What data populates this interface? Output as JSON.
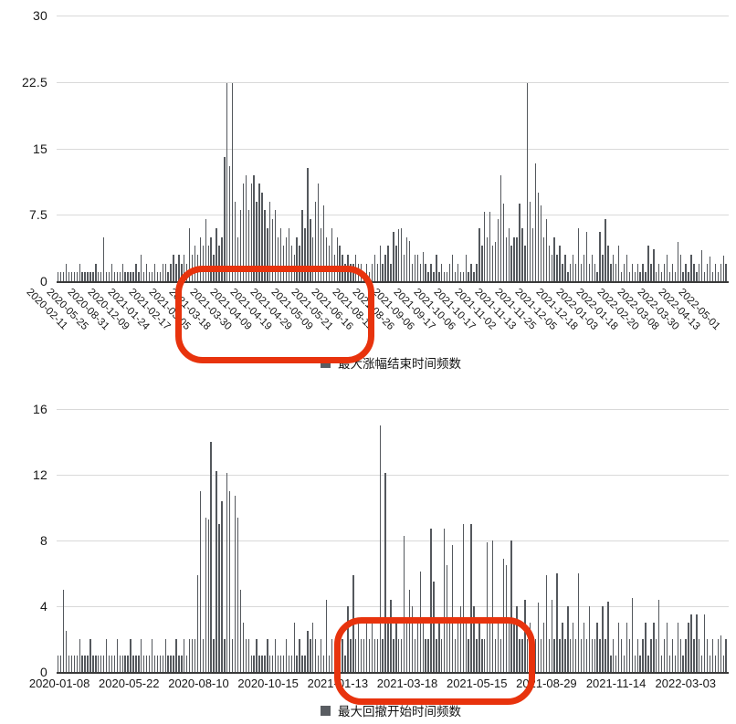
{
  "page": {
    "background": "#ffffff"
  },
  "colors": {
    "bar": "#54585d",
    "gridline": "#d9d9d9",
    "axis_line": "#3a3a3a",
    "tick_label": "#161616",
    "legend_swatch": "#595d62",
    "annotation_red": "#e8330d"
  },
  "chart_data": [
    {
      "type": "bar",
      "legend": "最大涨幅结束时间频数",
      "ylim": [
        0,
        30
      ],
      "yticks": [
        0,
        7.5,
        15,
        22.5,
        30
      ],
      "ytick_labels": [
        "0",
        "7.5",
        "15",
        "22.5",
        "30"
      ],
      "grid": "on",
      "legend_position": "bottom-center",
      "xtick_labels": [
        "2020-02-11",
        "2020-05-25",
        "2020-08-31",
        "2020-12-09",
        "2021-01-24",
        "2021-02-17",
        "2021-03-05",
        "2021-03-18",
        "2021-03-30",
        "2021-04-09",
        "2021-04-19",
        "2021-04-29",
        "2021-05-09",
        "2021-05-21",
        "2021-06-16",
        "2021-08-11",
        "2021-08-26",
        "2021-09-06",
        "2021-09-17",
        "2021-10-06",
        "2021-10-17",
        "2021-11-02",
        "2021-11-13",
        "2021-11-25",
        "2021-12-05",
        "2021-12-18",
        "2022-01-03",
        "2022-01-18",
        "2022-02-20",
        "2022-03-08",
        "2022-03-30",
        "2022-04-13",
        "2022-05-01"
      ],
      "highlight": {
        "shape": "rounded-rect",
        "color": "#e8330d",
        "range_labels": [
          "2021-03-05",
          "2021-06-16"
        ]
      },
      "values": [
        1,
        1,
        1,
        2,
        1,
        1,
        1,
        1,
        2,
        1,
        1,
        1,
        1,
        1,
        2,
        1,
        1,
        5,
        1,
        1,
        2,
        1,
        1,
        1,
        2,
        1,
        1,
        1,
        1,
        2,
        1,
        3,
        1,
        2,
        1,
        1,
        2,
        1,
        1,
        2,
        2,
        1,
        2,
        3,
        2,
        3,
        2,
        3,
        2,
        6,
        3,
        4,
        3,
        5,
        4,
        7,
        4,
        5,
        3,
        6,
        4,
        5,
        14,
        22.4,
        13,
        22.4,
        9,
        5,
        8,
        11,
        12,
        8,
        11,
        12,
        9,
        11,
        10,
        8,
        6,
        9,
        7,
        8,
        5,
        6,
        4,
        5,
        6,
        4,
        3,
        5,
        4,
        8,
        6,
        12.8,
        7,
        5,
        9,
        11,
        6,
        8.6,
        5,
        4,
        6,
        3,
        5,
        4,
        3,
        2,
        3,
        2,
        2,
        3,
        2,
        2,
        1,
        2,
        1,
        2,
        3,
        2,
        4,
        2,
        3,
        4,
        2,
        5.6,
        4,
        5.9,
        6,
        3,
        5,
        4.5,
        2,
        3,
        3,
        2,
        3.3,
        2,
        1,
        2,
        1,
        3,
        1,
        2,
        1,
        1,
        2,
        3,
        1,
        2,
        1,
        1,
        3,
        1,
        2,
        1,
        2,
        6,
        4,
        7.8,
        5,
        7.8,
        4,
        4.4,
        7,
        12,
        8.8,
        5,
        6,
        4,
        5,
        5,
        8.8,
        6,
        4,
        22.4,
        9,
        6,
        13.3,
        10,
        8.6,
        5,
        7,
        4,
        3,
        5,
        3,
        4,
        2,
        3,
        1,
        2,
        3,
        2,
        6,
        2,
        3,
        5.6,
        2,
        3,
        2,
        1,
        5.6,
        3,
        7,
        4,
        2,
        3,
        2,
        4,
        1,
        2,
        3,
        1,
        2,
        1,
        2,
        1,
        2,
        1,
        4,
        2,
        3.6,
        1,
        2,
        1,
        2,
        3,
        1,
        2,
        1,
        4.4,
        3,
        1,
        2,
        1,
        3,
        2,
        1,
        2,
        3.5,
        1,
        2,
        2.8,
        1,
        2,
        1,
        2,
        2.9,
        2
      ]
    },
    {
      "type": "bar",
      "legend": "最大回撤开始时间频数",
      "ylim": [
        0,
        16
      ],
      "yticks": [
        0,
        4,
        8,
        12,
        16
      ],
      "ytick_labels": [
        "0",
        "4",
        "8",
        "12",
        "16"
      ],
      "grid": "on",
      "legend_position": "bottom-center",
      "xtick_labels": [
        "2020-01-08",
        "2020-05-22",
        "2020-08-10",
        "2020-10-15",
        "2021-01-13",
        "2021-03-18",
        "2021-05-15",
        "2021-08-29",
        "2021-11-14",
        "2022-03-03"
      ],
      "highlight": {
        "shape": "rounded-rect",
        "color": "#e8330d",
        "range_labels": [
          "2021-01-13",
          "2021-05-15"
        ]
      },
      "values": [
        1,
        1,
        5,
        2.5,
        1,
        1,
        1,
        1,
        2,
        1,
        1,
        1,
        2,
        1,
        1,
        1,
        1,
        1,
        2,
        1,
        1,
        1,
        2,
        1,
        1,
        1,
        1,
        2,
        1,
        1,
        1,
        2,
        1,
        1,
        1,
        2,
        1,
        1,
        1,
        1,
        2,
        1,
        1,
        1,
        2,
        1,
        1,
        2,
        1,
        2,
        2,
        2,
        5.9,
        11,
        2,
        9.4,
        9.3,
        14,
        2,
        12.2,
        9,
        10.4,
        2,
        12.1,
        11,
        2,
        10.7,
        9.4,
        5,
        3,
        2,
        2,
        1,
        1,
        2,
        1,
        1,
        1,
        2,
        1,
        1,
        2,
        1,
        1,
        1,
        2,
        1,
        1,
        3,
        1,
        2,
        1,
        1,
        2.5,
        2,
        3,
        2,
        1,
        2,
        1,
        4.4,
        1,
        2,
        1,
        2,
        1,
        2,
        1,
        4,
        2,
        5.9,
        2,
        3,
        2,
        2,
        3,
        2,
        3,
        2,
        2,
        15,
        2,
        12.1,
        3,
        4.4,
        2,
        3,
        2,
        2,
        8.3,
        3,
        5,
        4,
        2,
        3,
        6.1,
        3,
        2,
        2,
        8.7,
        5.5,
        2,
        3,
        2,
        8.7,
        6.5,
        3,
        7.7,
        2,
        3,
        4,
        9,
        3,
        2,
        9,
        4,
        2,
        3,
        2,
        2,
        7.9,
        3,
        8,
        2,
        3,
        2,
        6.9,
        6.5,
        3,
        8,
        3,
        4,
        2,
        2,
        4.4,
        2,
        3,
        2,
        2,
        4.2,
        2,
        3,
        5.9,
        2,
        4.4,
        2,
        6,
        2,
        3,
        2,
        4,
        2,
        3,
        2,
        6,
        2,
        3,
        2,
        4,
        2,
        2,
        3,
        2,
        4,
        2,
        4.3,
        1,
        2,
        1,
        3,
        2,
        1,
        3,
        2,
        4.5,
        1,
        2,
        1,
        2,
        3,
        1,
        2,
        3,
        2,
        4.4,
        1,
        2,
        3,
        1,
        2,
        1,
        3,
        2,
        1,
        2,
        3,
        3.5,
        2,
        3.5,
        2,
        1,
        3.5,
        2,
        1,
        2,
        1,
        2,
        2.2,
        1,
        2
      ]
    }
  ]
}
